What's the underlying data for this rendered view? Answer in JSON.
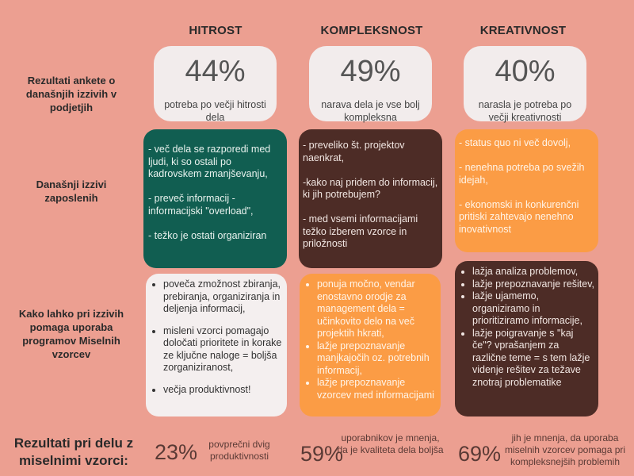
{
  "columns": [
    "HITROST",
    "KOMPLEKSNOST",
    "KREATIVNOST"
  ],
  "row_labels": {
    "row1": "Rezultati ankete o današnjih izzivih v podjetjih",
    "row2": "Današnji izzivi zaposlenih",
    "row3": "Kako lahko pri izzivih pomaga uporaba programov Miselnih vzorcev",
    "row4": "Rezultati pri delu z miselnimi vzorci:"
  },
  "stats": [
    {
      "pct": "44%",
      "desc": "potreba po večji hitrosti dela"
    },
    {
      "pct": "49%",
      "desc": "narava dela je vse bolj kompleksna"
    },
    {
      "pct": "40%",
      "desc": "narasla je potreba po večji kreativnosti"
    }
  ],
  "challenges": [
    "- več dela se razporedi med ljudi, ki so ostali po kadrovskem zmanjševanju,\n\n- preveč informacij - informacijski \"overload\",\n\n- težko je ostati organiziran",
    "- preveliko št.  projektov naenkrat,\n\n-kako naj pridem do informacij, ki jih potrebujem?\n\n- med vsemi informacijami težko izberem vzorce in priložnosti",
    "- status quo ni več dovolj,\n\n- nenehna potreba po svežih idejah,\n\n- ekonomski in konkurenčni pritiski zahtevajo nenehno inovativnost"
  ],
  "help": {
    "col1": [
      "poveča zmožnost zbiranja, prebiranja, organiziranja in deljenja informacij,",
      "misleni vzorci pomagajo določati prioritete in korake ze ključne naloge = boljša zorganiziranost,",
      "večja produktivnost!"
    ],
    "col2": [
      " ponuja močno, vendar enostavno orodje za management dela = učinkovito delo na več projektih hkrati,",
      "lažje prepoznavanje manjkajočih oz. potrebnih informacij,",
      "lažje prepoznavanje vzorcev med informacijami"
    ],
    "col3": [
      "lažja analiza problemov,",
      "lažje prepoznavanje rešitev,",
      "lažje ujamemo, organiziramo in prioritiziramo informacije,",
      "lažje poigravanje s \"kaj če\"? vprašanjem za različne teme = s tem lažje videnje rešitev za težave znotraj problematike"
    ]
  },
  "results": [
    {
      "pct": "23%",
      "desc": "povprečni dvig produktivnosti"
    },
    {
      "pct": "59%",
      "desc": "uporabnikov je mnenja, da je kvaliteta dela boljša"
    },
    {
      "pct": "69%",
      "desc": "jih je mnenja, da uporaba miselnih vzorcev pomaga pri kompleksnejših problemih"
    }
  ],
  "colors": {
    "background": "#ec9f91",
    "green": "#115e51",
    "brown": "#4d2c26",
    "orange": "#fb9c45",
    "card": "#f2ecec"
  }
}
